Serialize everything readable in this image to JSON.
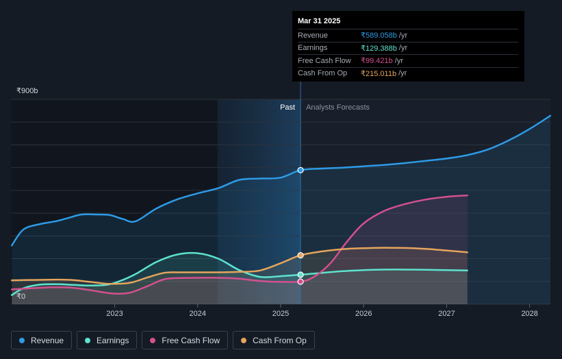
{
  "chart_data": {
    "type": "line",
    "title": "",
    "xlabel": "",
    "ylabel": "",
    "y_axis": {
      "max_label": "₹900b",
      "min_label": "₹0",
      "ylim": [
        0,
        900
      ]
    },
    "x_ticks": [
      "2023",
      "2024",
      "2025",
      "2026",
      "2027",
      "2028"
    ],
    "x_tick_values": [
      2023,
      2024,
      2025,
      2026,
      2027,
      2028
    ],
    "xlim": [
      2021.75,
      2028.25
    ],
    "past_label": "Past",
    "forecast_label": "Analysts Forecasts",
    "divider_x": 2025.24,
    "highlight_start_x": 2024.24,
    "series": [
      {
        "name": "Revenue",
        "color": "#2d9be6",
        "points": [
          [
            2021.76,
            258
          ],
          [
            2021.9,
            328
          ],
          [
            2022.1,
            352
          ],
          [
            2022.3,
            365
          ],
          [
            2022.45,
            380
          ],
          [
            2022.6,
            394
          ],
          [
            2022.8,
            394
          ],
          [
            2022.95,
            391
          ],
          [
            2023.1,
            374
          ],
          [
            2023.25,
            364
          ],
          [
            2023.5,
            420
          ],
          [
            2023.75,
            460
          ],
          [
            2024.0,
            487
          ],
          [
            2024.25,
            510
          ],
          [
            2024.5,
            546
          ],
          [
            2024.75,
            552
          ],
          [
            2025.0,
            556
          ],
          [
            2025.24,
            589
          ],
          [
            2025.5,
            596
          ],
          [
            2025.75,
            600
          ],
          [
            2026.0,
            606
          ],
          [
            2026.25,
            612
          ],
          [
            2026.5,
            620
          ],
          [
            2026.75,
            630
          ],
          [
            2027.0,
            640
          ],
          [
            2027.25,
            655
          ],
          [
            2027.5,
            680
          ],
          [
            2027.75,
            720
          ],
          [
            2028.0,
            770
          ],
          [
            2028.25,
            828
          ]
        ],
        "area_end_x": 2028.25
      },
      {
        "name": "Earnings",
        "color": "#5de3cf",
        "points": [
          [
            2021.76,
            40
          ],
          [
            2021.9,
            70
          ],
          [
            2022.1,
            86
          ],
          [
            2022.3,
            88
          ],
          [
            2022.5,
            85
          ],
          [
            2022.7,
            82
          ],
          [
            2022.9,
            85
          ],
          [
            2023.05,
            100
          ],
          [
            2023.25,
            132
          ],
          [
            2023.5,
            185
          ],
          [
            2023.75,
            218
          ],
          [
            2024.0,
            224
          ],
          [
            2024.25,
            200
          ],
          [
            2024.5,
            150
          ],
          [
            2024.75,
            120
          ],
          [
            2025.0,
            123
          ],
          [
            2025.24,
            129.388
          ],
          [
            2025.5,
            138
          ],
          [
            2025.75,
            145
          ],
          [
            2026.0,
            150
          ],
          [
            2026.25,
            152
          ],
          [
            2026.5,
            152
          ],
          [
            2026.75,
            151
          ],
          [
            2027.0,
            150
          ],
          [
            2027.25,
            148
          ]
        ],
        "area_end_x": 2027.25
      },
      {
        "name": "Free Cash Flow",
        "color": "#d4508f",
        "points": [
          [
            2021.76,
            65
          ],
          [
            2021.9,
            68
          ],
          [
            2022.1,
            72
          ],
          [
            2022.3,
            74
          ],
          [
            2022.5,
            72
          ],
          [
            2022.7,
            62
          ],
          [
            2022.9,
            50
          ],
          [
            2023.05,
            46
          ],
          [
            2023.2,
            52
          ],
          [
            2023.4,
            80
          ],
          [
            2023.6,
            110
          ],
          [
            2023.8,
            115
          ],
          [
            2024.0,
            116
          ],
          [
            2024.25,
            116
          ],
          [
            2024.5,
            112
          ],
          [
            2024.75,
            102
          ],
          [
            2025.0,
            98
          ],
          [
            2025.24,
            99.421
          ],
          [
            2025.4,
            120
          ],
          [
            2025.6,
            180
          ],
          [
            2025.8,
            275
          ],
          [
            2026.0,
            355
          ],
          [
            2026.25,
            410
          ],
          [
            2026.5,
            440
          ],
          [
            2026.75,
            460
          ],
          [
            2027.0,
            472
          ],
          [
            2027.25,
            478
          ]
        ],
        "area_end_x": 2027.25
      },
      {
        "name": "Cash From Op",
        "color": "#e5a55d",
        "points": [
          [
            2021.76,
            105
          ],
          [
            2021.9,
            106
          ],
          [
            2022.1,
            107
          ],
          [
            2022.3,
            108
          ],
          [
            2022.5,
            106
          ],
          [
            2022.7,
            98
          ],
          [
            2022.9,
            90
          ],
          [
            2023.05,
            90
          ],
          [
            2023.2,
            95
          ],
          [
            2023.4,
            118
          ],
          [
            2023.6,
            138
          ],
          [
            2023.8,
            140
          ],
          [
            2024.0,
            140
          ],
          [
            2024.25,
            140
          ],
          [
            2024.5,
            142
          ],
          [
            2024.75,
            148
          ],
          [
            2025.0,
            180
          ],
          [
            2025.24,
            215.011
          ],
          [
            2025.5,
            232
          ],
          [
            2025.75,
            242
          ],
          [
            2026.0,
            246
          ],
          [
            2026.25,
            248
          ],
          [
            2026.5,
            247
          ],
          [
            2026.75,
            243
          ],
          [
            2027.0,
            236
          ],
          [
            2027.25,
            228
          ]
        ],
        "area_end_x": 2027.25
      }
    ],
    "markers": [
      {
        "series": "Revenue",
        "x": 2025.24,
        "value": 589.058,
        "label": "₹589.058b"
      },
      {
        "series": "Earnings",
        "x": 2025.24,
        "value": 129.388,
        "label": "₹129.388b"
      },
      {
        "series": "Free Cash Flow",
        "x": 2025.24,
        "value": 99.421,
        "label": "₹99.421b"
      },
      {
        "series": "Cash From Op",
        "x": 2025.24,
        "value": 215.011,
        "label": "₹215.011b"
      }
    ]
  },
  "tooltip": {
    "date": "Mar 31 2025",
    "unit": "/yr",
    "rows": [
      {
        "label": "Revenue",
        "value": "₹589.058b",
        "color": "#2d9be6"
      },
      {
        "label": "Earnings",
        "value": "₹129.388b",
        "color": "#5de3cf"
      },
      {
        "label": "Free Cash Flow",
        "value": "₹99.421b",
        "color": "#d4508f"
      },
      {
        "label": "Cash From Op",
        "value": "₹215.011b",
        "color": "#e5a55d"
      }
    ]
  },
  "legend": [
    {
      "label": "Revenue",
      "color": "#2d9be6"
    },
    {
      "label": "Earnings",
      "color": "#5de3cf"
    },
    {
      "label": "Free Cash Flow",
      "color": "#d4508f"
    },
    {
      "label": "Cash From Op",
      "color": "#e5a55d"
    }
  ]
}
